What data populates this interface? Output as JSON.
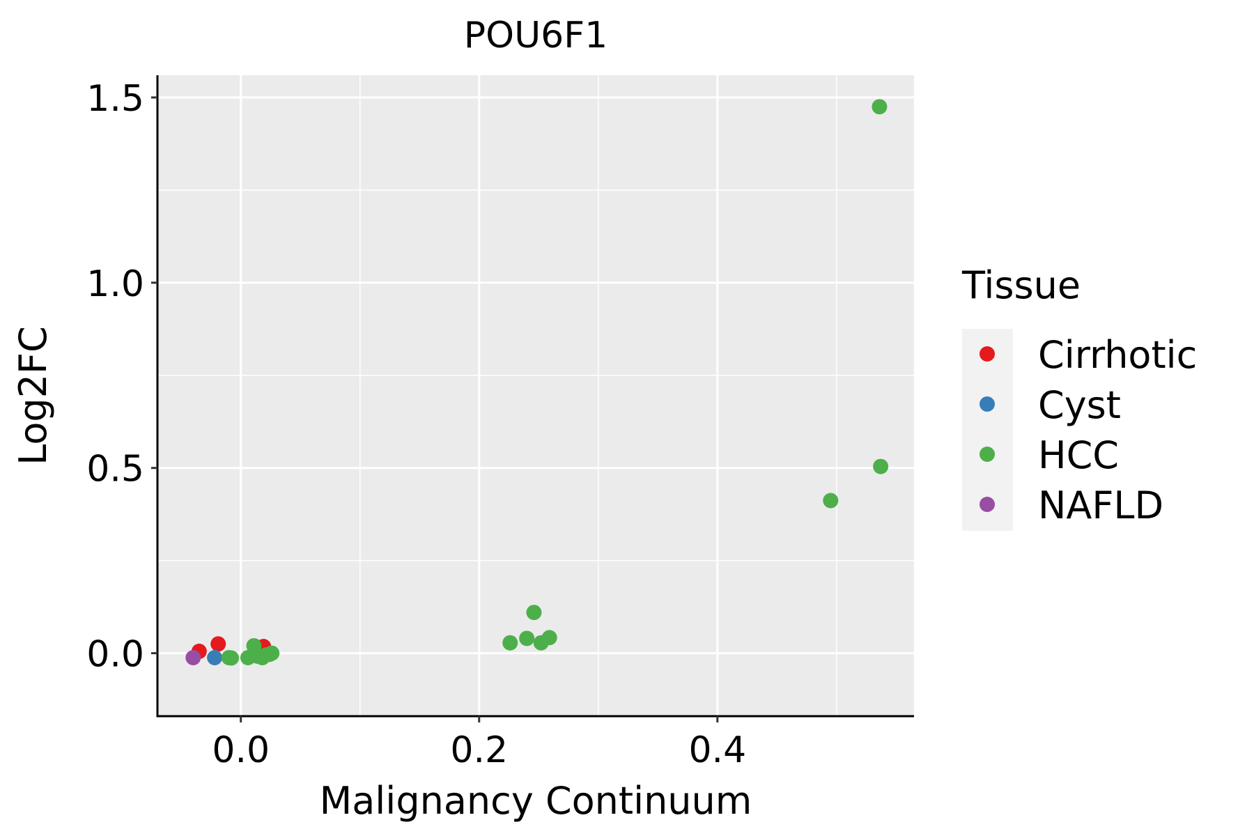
{
  "chart_data": {
    "type": "scatter",
    "title": "POU6F1",
    "xlabel": "Malignancy Continuum",
    "ylabel": "Log2FC",
    "xlim": [
      -0.07,
      0.565
    ],
    "ylim": [
      -0.17,
      1.56
    ],
    "x_ticks": [
      0.0,
      0.2,
      0.4
    ],
    "x_tick_labels": [
      "0.0",
      "0.2",
      "0.4"
    ],
    "x_minor_ticks": [
      0.1,
      0.3,
      0.5
    ],
    "y_ticks": [
      0.0,
      0.5,
      1.0,
      1.5
    ],
    "y_tick_labels": [
      "0.0",
      "0.5",
      "1.0",
      "1.5"
    ],
    "y_minor_ticks": [
      0.25,
      0.75,
      1.25
    ],
    "background": "#EBEBEB",
    "grid": true,
    "legend": {
      "title": "Tissue",
      "position": "right",
      "entries": [
        "Cirrhotic",
        "Cyst",
        "HCC",
        "NAFLD"
      ]
    },
    "series": [
      {
        "name": "Cirrhotic",
        "color": "#E41A1C",
        "points": [
          {
            "x": -0.035,
            "y": 0.005
          },
          {
            "x": -0.019,
            "y": 0.025
          },
          {
            "x": 0.019,
            "y": 0.018
          }
        ]
      },
      {
        "name": "Cyst",
        "color": "#377EB8",
        "points": [
          {
            "x": -0.022,
            "y": -0.012
          }
        ]
      },
      {
        "name": "HCC",
        "color": "#4DAF4A",
        "points": [
          {
            "x": -0.01,
            "y": -0.012
          },
          {
            "x": -0.008,
            "y": -0.013
          },
          {
            "x": 0.006,
            "y": -0.012
          },
          {
            "x": 0.011,
            "y": 0.02
          },
          {
            "x": 0.014,
            "y": -0.008
          },
          {
            "x": 0.018,
            "y": -0.012
          },
          {
            "x": 0.021,
            "y": -0.005
          },
          {
            "x": 0.024,
            "y": -0.003
          },
          {
            "x": 0.026,
            "y": 0.0
          },
          {
            "x": 0.226,
            "y": 0.028
          },
          {
            "x": 0.24,
            "y": 0.04
          },
          {
            "x": 0.246,
            "y": 0.11
          },
          {
            "x": 0.252,
            "y": 0.028
          },
          {
            "x": 0.259,
            "y": 0.042
          },
          {
            "x": 0.495,
            "y": 0.412
          },
          {
            "x": 0.536,
            "y": 1.475
          },
          {
            "x": 0.537,
            "y": 0.504
          }
        ]
      },
      {
        "name": "NAFLD",
        "color": "#984EA3",
        "points": [
          {
            "x": -0.04,
            "y": -0.012
          }
        ]
      }
    ]
  }
}
